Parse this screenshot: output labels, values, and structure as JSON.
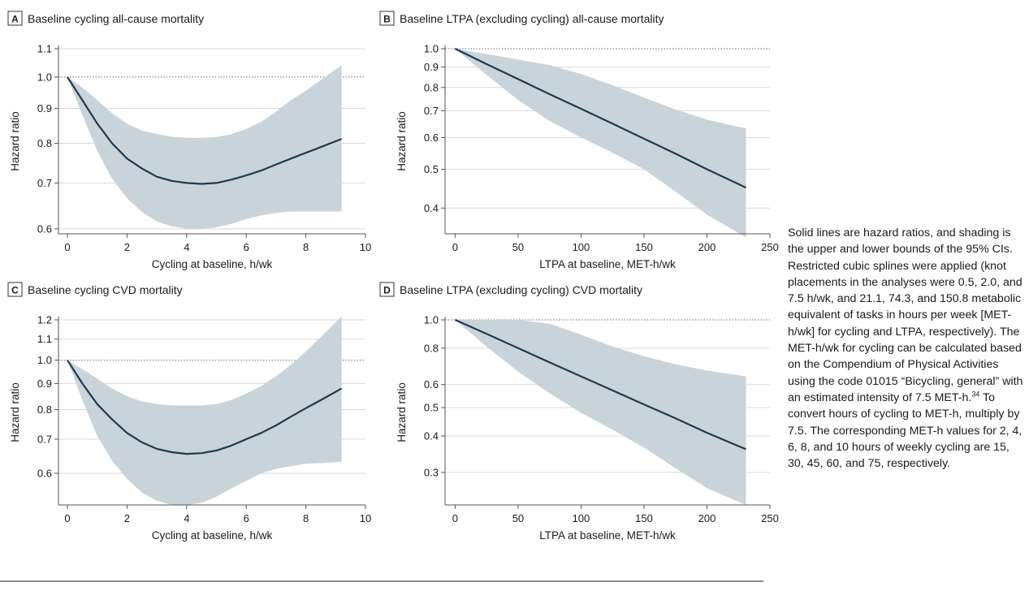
{
  "caption": {
    "text_before_ref": "Solid lines are hazard ratios, and shading is the upper and lower bounds of the 95% CIs. Restricted cubic splines were applied (knot placements in the analyses were 0.5, 2.0, and 7.5 h/wk, and 21.1, 74.3, and 150.8 metabolic equivalent of tasks in hours per week [MET-h/wk] for cycling and LTPA, respectively). The MET-h/wk for cycling can be calculated based on the Compendium of Physical Activities using the code 01015 “Bicycling, general” with an estimated intensity of 7.5 MET-h.",
    "ref": "34",
    "text_after_ref": " To convert hours of cycling to MET-h, multiply by 7.5. The corresponding MET-h values for 2, 4, 6, 8, and 10 hours of weekly cycling are 15, 30, 45, 60, and 75, respectively."
  },
  "colors": {
    "line": "#1f3b4d",
    "band": "#c9d3da",
    "grid": "#d9d9d9",
    "axis": "#555555",
    "reference": "#666666"
  },
  "chart_data": [
    {
      "letter": "A",
      "title": "Baseline cycling all-cause mortality",
      "type": "line",
      "xlabel": "Cycling at baseline, h/wk",
      "ylabel": "Hazard ratio",
      "xlim": [
        -0.3,
        10
      ],
      "ylim": [
        0.59,
        1.1
      ],
      "log_y": true,
      "xticks": [
        0,
        2,
        4,
        6,
        8,
        10
      ],
      "xtick_labels": [
        "0",
        "2",
        "4",
        "6",
        "8",
        "10"
      ],
      "yticks": [
        0.6,
        0.7,
        0.8,
        0.9,
        1.0,
        1.1
      ],
      "ytick_labels": [
        "0.6",
        "0.7",
        "0.8",
        "0.9",
        "1.0",
        "1.1"
      ],
      "reference_y": 1.0,
      "x": [
        0,
        0.5,
        1,
        1.5,
        2,
        2.5,
        3,
        3.5,
        4,
        4.5,
        5,
        5.5,
        6,
        6.5,
        7,
        7.5,
        8,
        8.5,
        9.2
      ],
      "hr": [
        1.0,
        0.925,
        0.855,
        0.8,
        0.76,
        0.735,
        0.715,
        0.705,
        0.7,
        0.698,
        0.7,
        0.708,
        0.718,
        0.73,
        0.745,
        0.76,
        0.775,
        0.79,
        0.812
      ],
      "upper": [
        1.0,
        0.965,
        0.925,
        0.885,
        0.855,
        0.835,
        0.825,
        0.818,
        0.815,
        0.815,
        0.817,
        0.825,
        0.84,
        0.86,
        0.89,
        0.925,
        0.955,
        0.99,
        1.04
      ],
      "lower": [
        1.0,
        0.88,
        0.78,
        0.71,
        0.665,
        0.635,
        0.615,
        0.605,
        0.6,
        0.6,
        0.603,
        0.61,
        0.62,
        0.628,
        0.633,
        0.636,
        0.636,
        0.636,
        0.636
      ]
    },
    {
      "letter": "B",
      "title": "Baseline LTPA (excluding cycling) all-cause mortality",
      "type": "line",
      "xlabel": "LTPA at baseline, MET-h/wk",
      "ylabel": "Hazard ratio",
      "xlim": [
        -8,
        250
      ],
      "ylim": [
        0.345,
        1.0
      ],
      "log_y": true,
      "xticks": [
        0,
        50,
        100,
        150,
        200,
        250
      ],
      "xtick_labels": [
        "0",
        "50",
        "100",
        "150",
        "200",
        "250"
      ],
      "yticks": [
        0.4,
        0.5,
        0.6,
        0.7,
        0.8,
        0.9,
        1.0
      ],
      "ytick_labels": [
        "0.4",
        "0.5",
        "0.6",
        "0.7",
        "0.8",
        "0.9",
        "1.0"
      ],
      "reference_y": 1.0,
      "x": [
        0,
        25,
        50,
        75,
        100,
        125,
        150,
        175,
        200,
        231
      ],
      "hr": [
        1.0,
        0.915,
        0.84,
        0.77,
        0.708,
        0.65,
        0.596,
        0.547,
        0.5,
        0.45
      ],
      "upper": [
        1.0,
        0.97,
        0.94,
        0.91,
        0.865,
        0.81,
        0.755,
        0.705,
        0.665,
        0.632
      ],
      "lower": [
        1.0,
        0.86,
        0.745,
        0.66,
        0.6,
        0.55,
        0.5,
        0.44,
        0.385,
        0.338
      ]
    },
    {
      "letter": "C",
      "title": "Baseline cycling CVD mortality",
      "type": "line",
      "xlabel": "Cycling at baseline, h/wk",
      "ylabel": "Hazard ratio",
      "xlim": [
        -0.3,
        10
      ],
      "ylim": [
        0.52,
        1.2
      ],
      "log_y": true,
      "xticks": [
        0,
        2,
        4,
        6,
        8,
        10
      ],
      "xtick_labels": [
        "0",
        "2",
        "4",
        "6",
        "8",
        "10"
      ],
      "yticks": [
        0.6,
        0.7,
        0.8,
        0.9,
        1.0,
        1.1,
        1.2
      ],
      "ytick_labels": [
        "0.6",
        "0.7",
        "0.8",
        "0.9",
        "1.0",
        "1.1",
        "1.2"
      ],
      "reference_y": 1.0,
      "x": [
        0,
        0.5,
        1,
        1.5,
        2,
        2.5,
        3,
        3.5,
        4,
        4.5,
        5,
        5.5,
        6,
        6.5,
        7,
        7.5,
        8,
        8.5,
        9.2
      ],
      "hr": [
        1.0,
        0.9,
        0.82,
        0.765,
        0.72,
        0.69,
        0.67,
        0.66,
        0.655,
        0.657,
        0.665,
        0.68,
        0.7,
        0.72,
        0.745,
        0.775,
        0.805,
        0.835,
        0.88
      ],
      "upper": [
        1.0,
        0.96,
        0.92,
        0.88,
        0.85,
        0.83,
        0.82,
        0.815,
        0.815,
        0.815,
        0.82,
        0.835,
        0.86,
        0.89,
        0.93,
        0.98,
        1.04,
        1.11,
        1.22
      ],
      "lower": [
        1.0,
        0.835,
        0.71,
        0.635,
        0.585,
        0.55,
        0.53,
        0.52,
        0.52,
        0.525,
        0.54,
        0.56,
        0.58,
        0.6,
        0.612,
        0.62,
        0.626,
        0.628,
        0.632
      ]
    },
    {
      "letter": "D",
      "title": "Baseline LTPA (excluding cycling) CVD mortality",
      "type": "line",
      "xlabel": "LTPA at baseline, MET-h/wk",
      "ylabel": "Hazard ratio",
      "xlim": [
        -8,
        250
      ],
      "ylim": [
        0.232,
        1.0
      ],
      "log_y": true,
      "xticks": [
        0,
        50,
        100,
        150,
        200,
        250
      ],
      "xtick_labels": [
        "0",
        "50",
        "100",
        "150",
        "200",
        "250"
      ],
      "yticks": [
        0.3,
        0.4,
        0.5,
        0.6,
        0.8,
        1.0
      ],
      "ytick_labels": [
        "0.3",
        "0.4",
        "0.5",
        "0.6",
        "0.8",
        "1.0"
      ],
      "reference_y": 1.0,
      "x": [
        0,
        25,
        50,
        75,
        100,
        125,
        150,
        175,
        200,
        231
      ],
      "hr": [
        1.0,
        0.895,
        0.8,
        0.715,
        0.64,
        0.573,
        0.513,
        0.46,
        0.41,
        0.36
      ],
      "upper": [
        1.0,
        1.0,
        1.0,
        0.97,
        0.89,
        0.81,
        0.75,
        0.705,
        0.67,
        0.64
      ],
      "lower": [
        1.0,
        0.81,
        0.665,
        0.56,
        0.48,
        0.42,
        0.365,
        0.31,
        0.265,
        0.232
      ]
    }
  ]
}
